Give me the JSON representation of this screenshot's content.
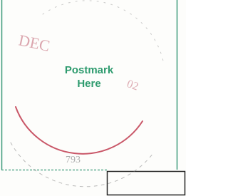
{
  "postmark_box": {
    "label_lines": [
      "Postmark",
      "Here"
    ]
  },
  "stamp": {
    "texts": [
      "DEC",
      "02",
      "793"
    ]
  }
}
